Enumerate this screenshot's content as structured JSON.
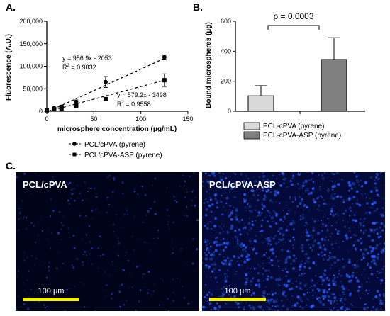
{
  "panels": {
    "a": "A.",
    "b": "B.",
    "c": "C."
  },
  "chart_data": [
    {
      "type": "scatter",
      "xlabel": "microsphere concentration (μg/mL)",
      "ylabel": "Fluorescence (A.U.)",
      "xlim": [
        0,
        150
      ],
      "ylim": [
        0,
        200000
      ],
      "xticks": [
        0,
        50,
        100,
        150
      ],
      "yticks": [
        0,
        50000,
        100000,
        150000,
        200000
      ],
      "ytick_labels": [
        "0",
        "50,000",
        "100,000",
        "150,000",
        "200,000"
      ],
      "legend_position": "bottom",
      "series": [
        {
          "name": "PCL/cPVA (pyrene)",
          "marker": "circle",
          "x": [
            0,
            7.8,
            15.6,
            31.25,
            62.5,
            125
          ],
          "y": [
            3000,
            7000,
            10000,
            20000,
            65000,
            120000
          ],
          "err": [
            1000,
            2000,
            3000,
            5000,
            12000,
            5000
          ],
          "fit": {
            "slope": 956.9,
            "intercept": -2053
          },
          "equation": "y = 956.9x - 2053",
          "r2_label": "R",
          "r2_sup": "2",
          "r2_value": " = 0.9832"
        },
        {
          "name": "PCL/cPVA-ASP (pyrene)",
          "marker": "square",
          "x": [
            0,
            7.8,
            15.6,
            31.25,
            62.5,
            125
          ],
          "y": [
            2000,
            4000,
            6000,
            12000,
            27000,
            69000
          ],
          "err": [
            500,
            1000,
            1500,
            2500,
            3000,
            14000
          ],
          "fit": {
            "slope": 579.2,
            "intercept": -3498
          },
          "equation": "y = 579.2x - 3498",
          "r2_label": "R",
          "r2_sup": "2",
          "r2_value": " = 0.9558"
        }
      ]
    },
    {
      "type": "bar",
      "ylabel": "Bound microspheres (μg)",
      "ylim": [
        0,
        600
      ],
      "yticks": [
        0,
        200,
        400,
        600
      ],
      "categories": [
        "PCL-cPVA (pyrene)",
        "PCL-cPVA-ASP (pyrene)"
      ],
      "values": [
        103,
        345
      ],
      "errors": [
        67,
        145
      ],
      "colors": [
        "#d9d9d9",
        "#808080"
      ],
      "legend_position": "bottom",
      "annotation": "p = 0.0003"
    }
  ],
  "images": [
    {
      "label": "PCL/cPVA",
      "scale": "100 μm"
    },
    {
      "label": "PCL/cPVA-ASP",
      "scale": "100 μm"
    }
  ]
}
